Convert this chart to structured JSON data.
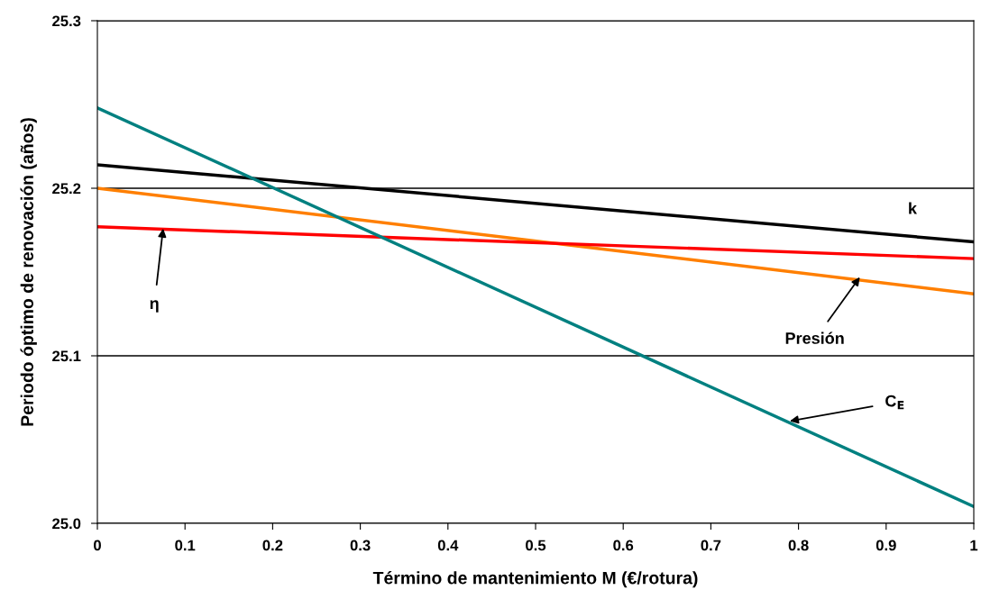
{
  "chart_data": {
    "type": "line",
    "xlabel": "Término de mantenimiento M (€/rotura)",
    "ylabel": "Periodo óptimo de renovación (años)",
    "x": [
      0,
      1
    ],
    "series": [
      {
        "color": "#000000",
        "values": [
          25.214,
          25.168
        ]
      },
      {
        "color": "#ff7f00",
        "values": [
          25.2,
          25.137
        ]
      },
      {
        "color": "#ff0000",
        "values": [
          25.177,
          25.158
        ]
      },
      {
        "color": "#008080",
        "values": [
          25.248,
          25.01
        ]
      }
    ],
    "xlim": [
      0,
      1
    ],
    "xticks": [
      {
        "value": 0,
        "label": "0"
      },
      0.1,
      0.2,
      0.3,
      0.4,
      0.5,
      0.6,
      0.7,
      0.8,
      0.9,
      {
        "value": 1,
        "label": "1"
      }
    ],
    "ylim": [
      25.0,
      25.3
    ],
    "yticks": [
      {
        "value": 25.0,
        "label": "25.0"
      },
      25.1,
      25.2,
      25.3
    ],
    "grid": "y",
    "legend": false,
    "marker": "none",
    "line_style": "solid",
    "annotations": [
      "k",
      {
        "text": "η",
        "x": 0.075,
        "y": 25.176
      },
      {
        "text": "Presión",
        "x": 0.87,
        "y": 25.147
      },
      {
        "text": "C$_{E}$",
        "x": 0.79,
        "y": 25.061
      }
    ]
  }
}
